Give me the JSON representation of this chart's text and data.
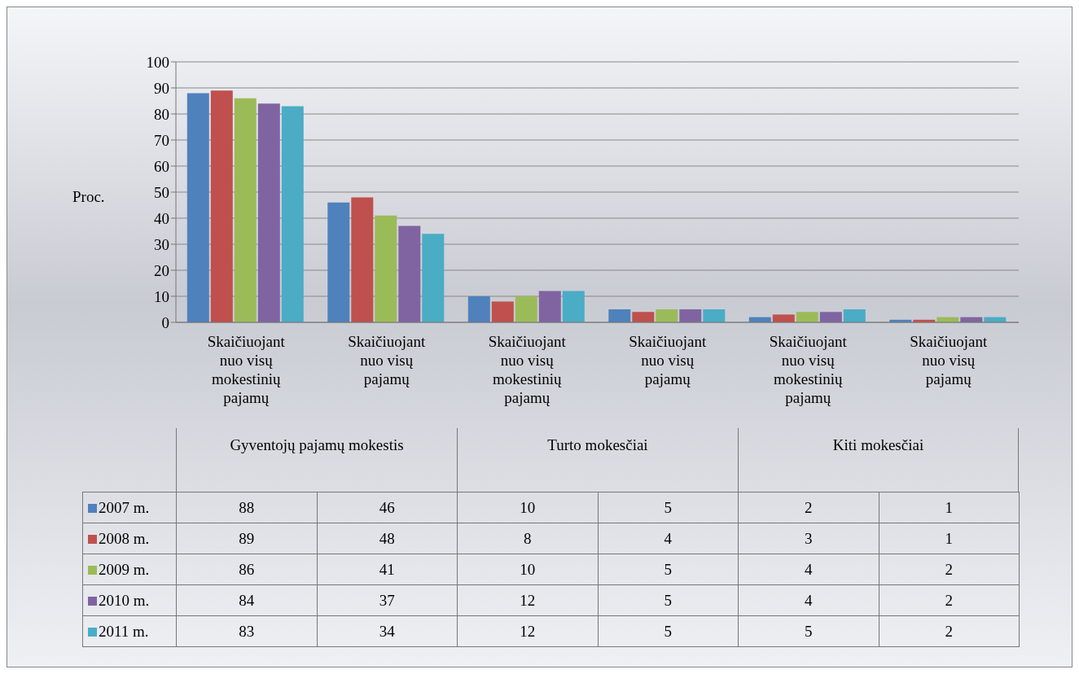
{
  "chart_data": {
    "type": "bar",
    "ylabel": "Proc.",
    "categories": [
      "Skaičiuojant nuo visų mokestinių pajamų",
      "Skaičiuojant nuo visų pajamų",
      "Skaičiuojant nuo visų mokestinių pajamų",
      "Skaičiuojant nuo visų pajamų",
      "Skaičiuojant nuo visų mokestinių pajamų",
      "Skaičiuojant nuo visų pajamų"
    ],
    "annotations": [
      "Gyventojų pajamų mokestis",
      "Turto mokesčiai",
      "Kiti mokesčiai"
    ],
    "series": [
      {
        "name": "2007 m.",
        "color": "#4f81bd",
        "values": [
          88,
          46,
          10,
          5,
          2,
          1
        ]
      },
      {
        "name": "2008 m.",
        "color": "#c0504d",
        "values": [
          89,
          48,
          8,
          4,
          3,
          1
        ]
      },
      {
        "name": "2009 m.",
        "color": "#9bbb59",
        "values": [
          86,
          41,
          10,
          5,
          4,
          2
        ]
      },
      {
        "name": "2010 m.",
        "color": "#8064a2",
        "values": [
          84,
          37,
          12,
          5,
          4,
          2
        ]
      },
      {
        "name": "2011 m.",
        "color": "#4bacc6",
        "values": [
          83,
          34,
          12,
          5,
          5,
          2
        ]
      }
    ],
    "ylim": [
      0,
      100
    ],
    "yticks": [
      0,
      10,
      20,
      30,
      40,
      50,
      60,
      70,
      80,
      90,
      100
    ],
    "grid": "y",
    "legend": "bottom",
    "data_labels": true
  }
}
